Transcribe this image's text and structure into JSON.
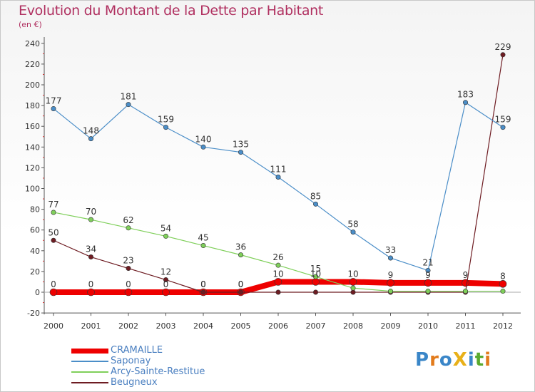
{
  "chart_data": {
    "type": "line",
    "title": "Evolution du Montant de la Dette par Habitant",
    "subtitle": "(en €)",
    "xlabel": "",
    "ylabel": "",
    "ylim": [
      -20,
      240
    ],
    "yticks": [
      -20,
      0,
      20,
      40,
      60,
      80,
      100,
      120,
      140,
      160,
      180,
      200,
      220,
      240
    ],
    "categories": [
      "2000",
      "2001",
      "2002",
      "2003",
      "2004",
      "2005",
      "2006",
      "2007",
      "2008",
      "2009",
      "2010",
      "2011",
      "2012"
    ],
    "grid": false,
    "legend_position": "bottom-left",
    "series": [
      {
        "name": "CRAMAILLE",
        "color": "#ee0000",
        "values": [
          0,
          0,
          0,
          0,
          0,
          0,
          10,
          10,
          10,
          9,
          9,
          9,
          8
        ]
      },
      {
        "name": "Saponay",
        "color": "#4b8ec8",
        "values": [
          177,
          148,
          181,
          159,
          140,
          135,
          111,
          85,
          58,
          33,
          21,
          183,
          159
        ]
      },
      {
        "name": "Arcy-Sainte-Restitue",
        "color": "#7fcf5a",
        "values": [
          77,
          70,
          62,
          54,
          45,
          36,
          26,
          15,
          4,
          1,
          1,
          1,
          1
        ]
      },
      {
        "name": "Beugneux",
        "color": "#6e1c22",
        "values": [
          50,
          34,
          23,
          12,
          0,
          0,
          0,
          0,
          0,
          0,
          0,
          0,
          229
        ]
      }
    ],
    "data_labels": {
      "CRAMAILLE": [
        "0",
        "0",
        "0",
        "0",
        "0",
        "0",
        "10",
        "10",
        "10",
        "9",
        "9",
        "9",
        "8"
      ],
      "Saponay": [
        "177",
        "148",
        "181",
        "159",
        "140",
        "135",
        "111",
        "85",
        "58",
        "33",
        "21",
        "183",
        "159"
      ],
      "Arcy-Sainte-Restitue": [
        "77",
        "70",
        "62",
        "54",
        "45",
        "36",
        "26",
        "15",
        "",
        "",
        "",
        "",
        ""
      ],
      "Beugneux": [
        "50",
        "34",
        "23",
        "12",
        "0",
        "0",
        "",
        "",
        "",
        "",
        "",
        "",
        "229"
      ]
    }
  },
  "logo": {
    "text": "ProXiti",
    "colors": [
      "#3a86c8",
      "#e27b1c",
      "#3a86c8",
      "#e8b019",
      "#3a86c8",
      "#5aaa2e",
      "#e27b1c"
    ]
  }
}
